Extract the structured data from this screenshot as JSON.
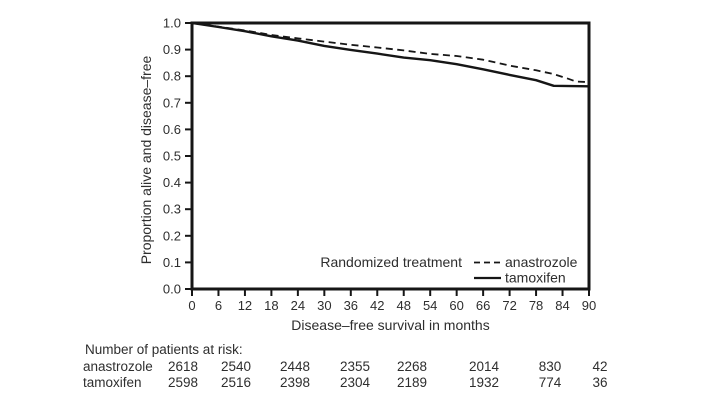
{
  "style": {
    "background": "#ffffff",
    "line_color": "#161616",
    "text_color": "#2e2e2e"
  },
  "chart_data": {
    "type": "line",
    "subtype": "kaplan-meier-survival",
    "title": "",
    "xlabel": "Disease–free survival in months",
    "ylabel": "Proportion alive and disease–free",
    "xlim": [
      0,
      90
    ],
    "ylim": [
      0.0,
      1.0
    ],
    "x_ticks": [
      0,
      6,
      12,
      18,
      24,
      30,
      36,
      42,
      48,
      54,
      60,
      66,
      72,
      78,
      84,
      90
    ],
    "y_ticks": [
      0.0,
      0.1,
      0.2,
      0.3,
      0.4,
      0.5,
      0.6,
      0.7,
      0.8,
      0.9,
      1.0
    ],
    "grid": false,
    "legend": {
      "title": "Randomized treatment",
      "position": "inside-bottom-right",
      "entries": [
        {
          "label": "anastrozole",
          "line_style": "dashed"
        },
        {
          "label": "tamoxifen",
          "line_style": "solid"
        }
      ]
    },
    "series": [
      {
        "name": "anastrozole",
        "line_style": "dashed",
        "color": "#161616",
        "x": [
          0,
          6,
          12,
          18,
          24,
          30,
          36,
          42,
          48,
          54,
          60,
          66,
          72,
          78,
          82,
          85,
          87,
          90
        ],
        "y": [
          1.0,
          0.986,
          0.972,
          0.955,
          0.942,
          0.93,
          0.918,
          0.908,
          0.897,
          0.884,
          0.876,
          0.862,
          0.84,
          0.822,
          0.808,
          0.792,
          0.78,
          0.778
        ]
      },
      {
        "name": "tamoxifen",
        "line_style": "solid",
        "color": "#161616",
        "x": [
          0,
          6,
          12,
          18,
          24,
          30,
          36,
          42,
          48,
          54,
          60,
          66,
          72,
          78,
          82,
          90
        ],
        "y": [
          1.0,
          0.985,
          0.969,
          0.95,
          0.934,
          0.914,
          0.899,
          0.885,
          0.87,
          0.86,
          0.845,
          0.826,
          0.805,
          0.785,
          0.764,
          0.762
        ]
      }
    ]
  },
  "risk_table": {
    "header": "Number of patients at risk:",
    "rows": [
      {
        "label": "anastrozole",
        "counts": [
          "2618",
          "2540",
          "2448",
          "2355",
          "2268",
          "2014",
          "830",
          "42"
        ]
      },
      {
        "label": "tamoxifen",
        "counts": [
          "2598",
          "2516",
          "2398",
          "2304",
          "2189",
          "1932",
          "774",
          "36"
        ]
      }
    ]
  }
}
